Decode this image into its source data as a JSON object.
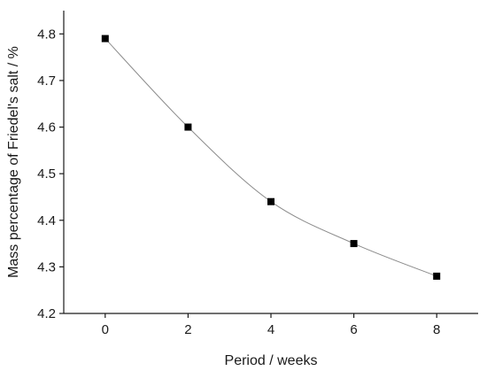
{
  "chart_data": {
    "type": "line",
    "title": "",
    "xlabel": "Period / weeks",
    "ylabel": "Mass percentage of Friedel's salt / %",
    "xlim": [
      -1,
      9
    ],
    "ylim": [
      4.2,
      4.85
    ],
    "xticks": [
      0,
      2,
      4,
      6,
      8
    ],
    "yticks": [
      4.2,
      4.3,
      4.4,
      4.5,
      4.6,
      4.7,
      4.8
    ],
    "xtick_labels": [
      "0",
      "2",
      "4",
      "6",
      "8"
    ],
    "ytick_labels": [
      "4.2",
      "4.3",
      "4.4",
      "4.5",
      "4.6",
      "4.7",
      "4.8"
    ],
    "grid": false,
    "legend": "none",
    "series": [
      {
        "x": [
          0,
          2,
          4,
          6,
          8
        ],
        "y": [
          4.79,
          4.6,
          4.44,
          4.35,
          4.28
        ],
        "marker": "square",
        "marker_color": "#000000",
        "line_color": "#8c8c8c",
        "curve": "smooth"
      }
    ]
  }
}
